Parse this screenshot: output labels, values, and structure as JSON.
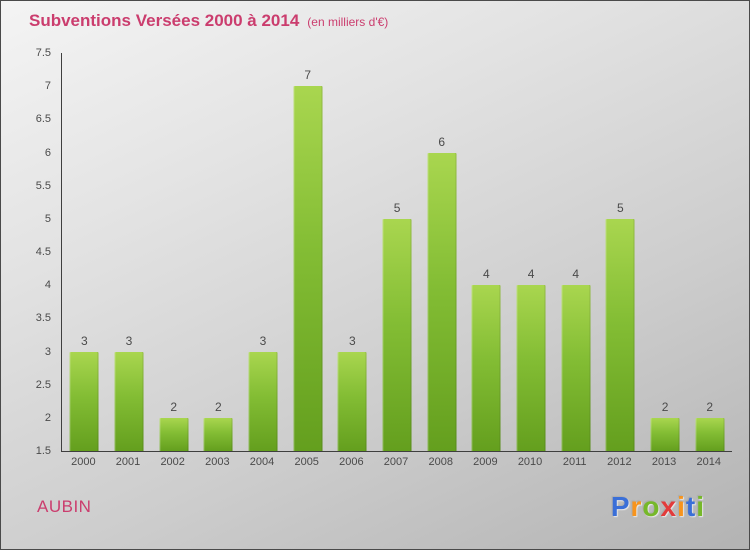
{
  "header": {
    "title": "Subventions Versées 2000 à 2014",
    "subtitle": "(en milliers d'€)"
  },
  "chart_data": {
    "type": "bar",
    "title": "Subventions Versées 2000 à 2014",
    "subtitle": "(en milliers d'€)",
    "categories": [
      "2000",
      "2001",
      "2002",
      "2003",
      "2004",
      "2005",
      "2006",
      "2007",
      "2008",
      "2009",
      "2010",
      "2011",
      "2012",
      "2013",
      "2014"
    ],
    "values": [
      3,
      3,
      2,
      2,
      3,
      7,
      3,
      5,
      6,
      4,
      4,
      4,
      5,
      2,
      2
    ],
    "xlabel": "",
    "ylabel": "",
    "ylim": [
      1.5,
      7.5
    ],
    "ytick_step": 0.5,
    "grid": false,
    "legend": false,
    "bar_color_top": "#a9d64d",
    "bar_color_bottom": "#649f1e",
    "value_label_color": "#4a4a4a",
    "axis_color": "#3f3f3f"
  },
  "footer": {
    "location": "AUBIN",
    "brand_letters": [
      {
        "char": "P",
        "color": "#3a6fd8"
      },
      {
        "char": "r",
        "color": "#f7941d"
      },
      {
        "char": "o",
        "color": "#76b82a"
      },
      {
        "char": "x",
        "color": "#e23b3b"
      },
      {
        "char": "i",
        "color": "#f7941d"
      },
      {
        "char": "t",
        "color": "#3a6fd8"
      },
      {
        "char": "i",
        "color": "#76b82a"
      }
    ]
  },
  "colors": {
    "title": "#cb3d6e",
    "background_top": "#f4f4f4",
    "background_bottom": "#b3b3b3"
  }
}
